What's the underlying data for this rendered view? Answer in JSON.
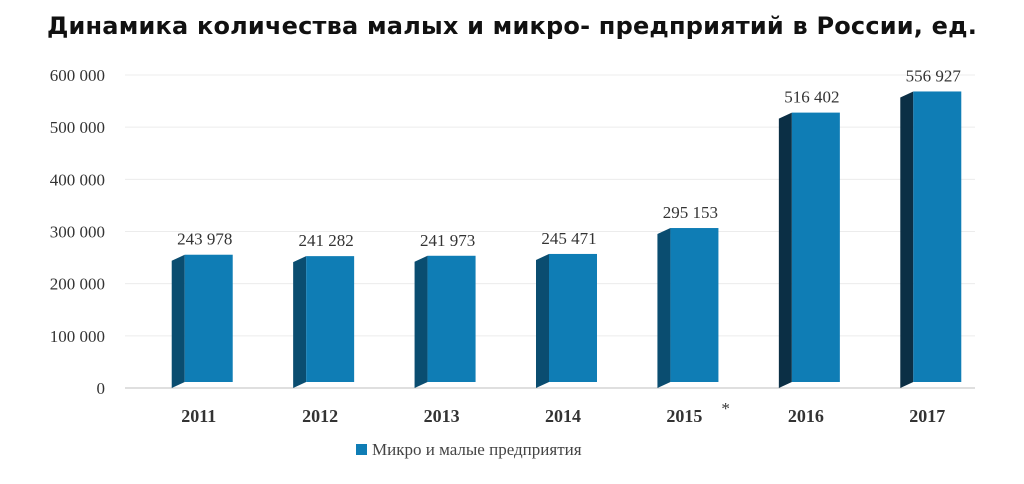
{
  "title": "Динамика количества малых и микро- предприятий в России, ед.",
  "chart_data": {
    "type": "bar",
    "title": "Динамика количества малых и микро- предприятий в России, ед.",
    "categories": [
      "2011",
      "2012",
      "2013",
      "2014",
      "2015",
      "2016",
      "2017"
    ],
    "series": [
      {
        "name": "Микро и малые предприятия",
        "values": [
          243978,
          241282,
          241973,
          245471,
          295153,
          516402,
          556927
        ],
        "labels": [
          "243 978",
          "241 282",
          "241 973",
          "245 471",
          "295 153",
          "516 402",
          "556 927"
        ],
        "color": "#0f7db5"
      }
    ],
    "yticks": [
      "0",
      "100 000",
      "200 000",
      "300 000",
      "400 000",
      "500 000",
      "600 000"
    ],
    "ylim": [
      0,
      600000
    ],
    "annotation": "*",
    "grid": true,
    "legend": "bottom-center",
    "xlabel": "",
    "ylabel": ""
  }
}
